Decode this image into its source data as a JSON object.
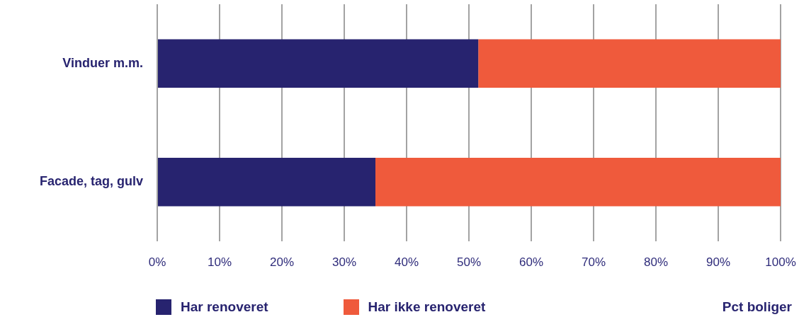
{
  "chart_data": {
    "type": "bar",
    "orientation": "horizontal",
    "stacked": true,
    "categories": [
      "Vinduer m.m.",
      "Facade, tag, gulv"
    ],
    "series": [
      {
        "name": "Har renoveret",
        "color": "#27236f",
        "values": [
          51.5,
          35
        ]
      },
      {
        "name": "Har ikke renoveret",
        "color": "#ef5a3c",
        "values": [
          48.5,
          65
        ]
      }
    ],
    "xlabel": "Pct boliger",
    "xlim": [
      0,
      100
    ],
    "xticks": [
      {
        "value": 0,
        "label": "0%"
      },
      {
        "value": 10,
        "label": "10%"
      },
      {
        "value": 20,
        "label": "20%"
      },
      {
        "value": 30,
        "label": "30%"
      },
      {
        "value": 40,
        "label": "40%"
      },
      {
        "value": 50,
        "label": "50%"
      },
      {
        "value": 60,
        "label": "60%"
      },
      {
        "value": 70,
        "label": "70%"
      },
      {
        "value": 80,
        "label": "80%"
      },
      {
        "value": 90,
        "label": "90%"
      },
      {
        "value": 100,
        "label": "100%"
      }
    ],
    "grid": "x",
    "legend": "bottom"
  }
}
